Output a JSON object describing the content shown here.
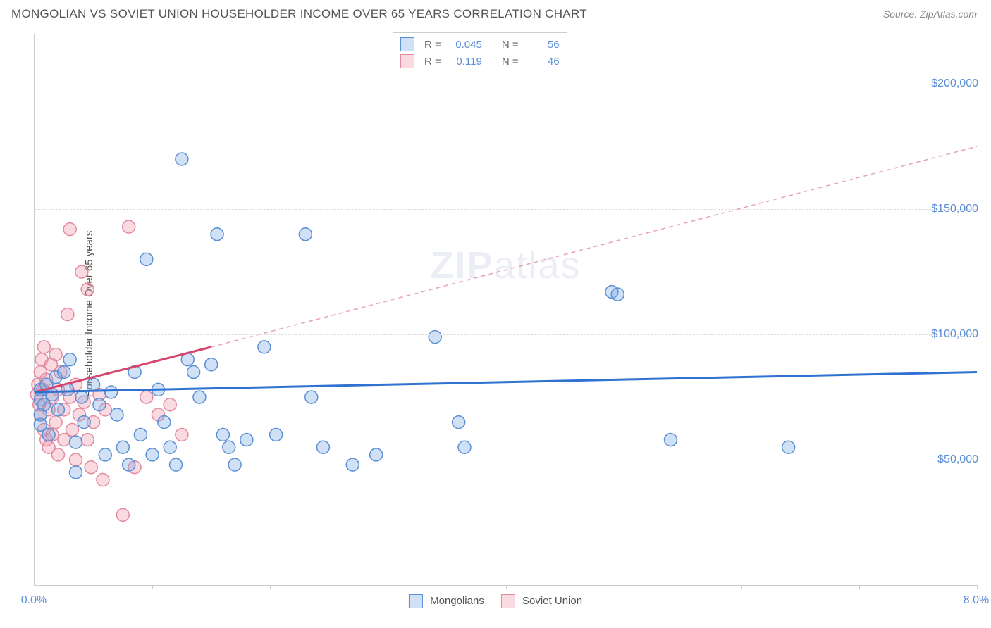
{
  "title": "MONGOLIAN VS SOVIET UNION HOUSEHOLDER INCOME OVER 65 YEARS CORRELATION CHART",
  "source": "Source: ZipAtlas.com",
  "y_axis_label": "Householder Income Over 65 years",
  "watermark": "ZIPatlas",
  "chart": {
    "type": "scatter",
    "x_range": [
      0,
      8
    ],
    "y_range": [
      0,
      220000
    ],
    "x_ticks_pct": [
      0,
      1,
      2,
      3,
      4,
      5,
      6,
      7,
      8
    ],
    "x_tick_labels": {
      "0": "0.0%",
      "8": "8.0%"
    },
    "y_gridlines": [
      50000,
      100000,
      150000,
      200000
    ],
    "y_tick_labels": {
      "50000": "$50,000",
      "100000": "$100,000",
      "150000": "$150,000",
      "200000": "$200,000"
    },
    "background_color": "#ffffff",
    "grid_color": "#dddddd",
    "axis_color": "#cccccc",
    "marker_radius": 9,
    "marker_stroke_width": 1.5,
    "series": [
      {
        "name": "Mongolians",
        "fill": "rgba(120,165,225,0.35)",
        "stroke": "#5b8fd6",
        "R": "0.045",
        "N": "56",
        "trend": {
          "x1": 0,
          "y1": 77000,
          "x2": 8,
          "y2": 85000,
          "stroke": "#2f72d1",
          "width": 3,
          "dash": "none"
        },
        "points": [
          [
            0.05,
            74000
          ],
          [
            0.05,
            78000
          ],
          [
            0.05,
            68000
          ],
          [
            0.05,
            64000
          ],
          [
            0.08,
            72000
          ],
          [
            0.1,
            80000
          ],
          [
            0.12,
            60000
          ],
          [
            0.15,
            76000
          ],
          [
            0.18,
            83000
          ],
          [
            0.2,
            70000
          ],
          [
            0.25,
            85000
          ],
          [
            0.28,
            78000
          ],
          [
            0.3,
            90000
          ],
          [
            0.35,
            57000
          ],
          [
            0.4,
            75000
          ],
          [
            0.42,
            65000
          ],
          [
            0.5,
            80000
          ],
          [
            0.55,
            72000
          ],
          [
            0.6,
            52000
          ],
          [
            0.65,
            77000
          ],
          [
            0.7,
            68000
          ],
          [
            0.75,
            55000
          ],
          [
            0.8,
            48000
          ],
          [
            0.85,
            85000
          ],
          [
            0.9,
            60000
          ],
          [
            0.95,
            130000
          ],
          [
            1.0,
            52000
          ],
          [
            1.05,
            78000
          ],
          [
            1.1,
            65000
          ],
          [
            1.15,
            55000
          ],
          [
            1.2,
            48000
          ],
          [
            1.25,
            170000
          ],
          [
            1.3,
            90000
          ],
          [
            1.35,
            85000
          ],
          [
            1.4,
            75000
          ],
          [
            1.5,
            88000
          ],
          [
            1.55,
            140000
          ],
          [
            1.6,
            60000
          ],
          [
            1.65,
            55000
          ],
          [
            1.7,
            48000
          ],
          [
            1.8,
            58000
          ],
          [
            1.95,
            95000
          ],
          [
            2.05,
            60000
          ],
          [
            2.3,
            140000
          ],
          [
            2.35,
            75000
          ],
          [
            2.45,
            55000
          ],
          [
            2.7,
            48000
          ],
          [
            2.9,
            52000
          ],
          [
            3.4,
            99000
          ],
          [
            3.6,
            65000
          ],
          [
            3.65,
            55000
          ],
          [
            4.9,
            117000
          ],
          [
            4.95,
            116000
          ],
          [
            5.4,
            58000
          ],
          [
            6.4,
            55000
          ],
          [
            0.35,
            45000
          ]
        ]
      },
      {
        "name": "Soviet Union",
        "fill": "rgba(240,150,170,0.35)",
        "stroke": "#e48aa0",
        "R": "0.119",
        "N": "46",
        "trend_solid": {
          "x1": 0,
          "y1": 77000,
          "x2": 1.5,
          "y2": 95000,
          "stroke": "#d6456e",
          "width": 3,
          "dash": "none"
        },
        "trend_dash": {
          "x1": 1.5,
          "y1": 95000,
          "x2": 8,
          "y2": 175000,
          "stroke": "#e8a0b5",
          "width": 1.5,
          "dash": "6,5"
        },
        "points": [
          [
            0.02,
            76000
          ],
          [
            0.03,
            80000
          ],
          [
            0.04,
            72000
          ],
          [
            0.05,
            85000
          ],
          [
            0.05,
            68000
          ],
          [
            0.06,
            90000
          ],
          [
            0.07,
            78000
          ],
          [
            0.08,
            62000
          ],
          [
            0.08,
            95000
          ],
          [
            0.1,
            58000
          ],
          [
            0.1,
            82000
          ],
          [
            0.12,
            55000
          ],
          [
            0.12,
            70000
          ],
          [
            0.14,
            88000
          ],
          [
            0.15,
            75000
          ],
          [
            0.15,
            60000
          ],
          [
            0.18,
            92000
          ],
          [
            0.18,
            65000
          ],
          [
            0.2,
            78000
          ],
          [
            0.2,
            52000
          ],
          [
            0.22,
            85000
          ],
          [
            0.25,
            70000
          ],
          [
            0.25,
            58000
          ],
          [
            0.28,
            108000
          ],
          [
            0.3,
            75000
          ],
          [
            0.3,
            142000
          ],
          [
            0.32,
            62000
          ],
          [
            0.35,
            80000
          ],
          [
            0.35,
            50000
          ],
          [
            0.38,
            68000
          ],
          [
            0.4,
            125000
          ],
          [
            0.42,
            73000
          ],
          [
            0.45,
            58000
          ],
          [
            0.45,
            118000
          ],
          [
            0.48,
            47000
          ],
          [
            0.5,
            65000
          ],
          [
            0.55,
            76000
          ],
          [
            0.58,
            42000
          ],
          [
            0.6,
            70000
          ],
          [
            0.75,
            28000
          ],
          [
            0.8,
            143000
          ],
          [
            0.85,
            47000
          ],
          [
            0.95,
            75000
          ],
          [
            1.05,
            68000
          ],
          [
            1.15,
            72000
          ],
          [
            1.25,
            60000
          ]
        ]
      }
    ]
  },
  "legend": {
    "series1_label": "Mongolians",
    "series2_label": "Soviet Union"
  },
  "stats_labels": {
    "R": "R =",
    "N": "N ="
  }
}
